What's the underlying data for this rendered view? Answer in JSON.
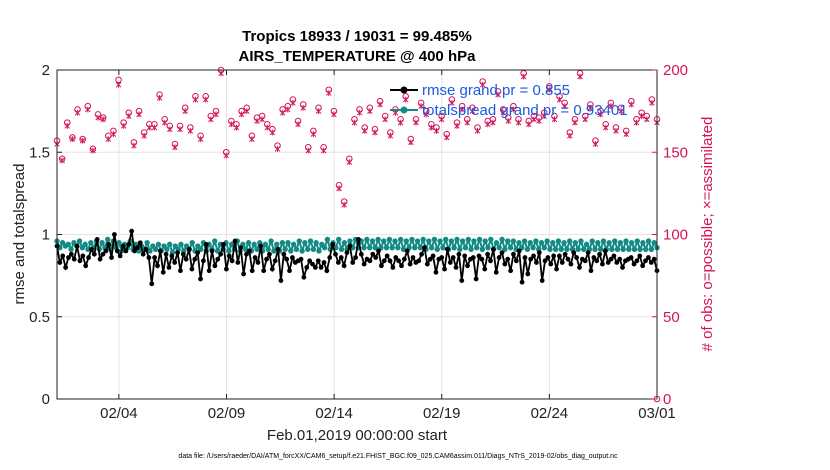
{
  "chart_data": {
    "type": "line",
    "title": "Tropics 18933 / 19031 = 99.485%",
    "subtitle": "AIRS_TEMPERATURE @ 400 hPa",
    "xlabel": "Feb.01,2019 00:00:00 start",
    "ylabel_left": "rmse and totalspread",
    "ylabel_right": "# of obs: o=possible; ×=assimilated",
    "footer": "data file: /Users/raeder/DAI/ATM_forcXX/CAM6_setup/f.e21.FHIST_BGC.f09_025.CAM6assim.011/Diags_NTrS_2019-02/obs_diag_output.nc",
    "x_ticks": [
      "02/04",
      "02/09",
      "02/14",
      "02/19",
      "02/24",
      "03/01"
    ],
    "x_tick_days": [
      4,
      9,
      14,
      19,
      24,
      29
    ],
    "xlim_days": [
      1.125,
      29.0
    ],
    "ylim_left": [
      0,
      2
    ],
    "y_ticks_left": [
      "0",
      "0.5",
      "1",
      "1.5",
      "2"
    ],
    "y_tick_values_left": [
      0,
      0.5,
      1,
      1.5,
      2
    ],
    "ylim_right": [
      0,
      200
    ],
    "y_ticks_right": [
      "0",
      "50",
      "100",
      "150",
      "200"
    ],
    "y_tick_values_right": [
      0,
      50,
      100,
      150,
      200
    ],
    "grid": true,
    "legend_position": "top-right",
    "colors": {
      "rmse": "#000000",
      "spread": "#138a84",
      "obs": "#d4145a",
      "legend_text": "#1a5adf"
    },
    "series": [
      {
        "name": "rmse grand pr = 0.855",
        "axis": "left",
        "marker": "star",
        "values": [
          0.93,
          0.83,
          0.87,
          0.8,
          0.86,
          0.88,
          0.85,
          0.93,
          0.84,
          0.87,
          0.81,
          0.86,
          0.91,
          0.88,
          0.97,
          0.85,
          0.88,
          0.9,
          0.94,
          0.86,
          1.0,
          0.9,
          0.87,
          0.93,
          0.9,
          0.94,
          1.02,
          0.9,
          0.92,
          0.95,
          0.88,
          0.91,
          0.86,
          0.7,
          0.86,
          0.81,
          0.9,
          0.77,
          0.88,
          0.8,
          0.87,
          0.83,
          0.89,
          0.78,
          0.88,
          0.85,
          0.91,
          0.79,
          0.85,
          0.89,
          0.73,
          0.84,
          0.94,
          0.78,
          0.9,
          0.81,
          0.85,
          0.88,
          0.94,
          0.79,
          0.87,
          0.84,
          0.96,
          0.83,
          0.92,
          0.76,
          0.88,
          0.9,
          0.78,
          0.86,
          0.83,
          0.93,
          0.78,
          0.85,
          0.88,
          0.79,
          0.84,
          0.91,
          0.72,
          0.88,
          0.85,
          0.78,
          0.86,
          0.83,
          0.84,
          0.85,
          0.74,
          0.8,
          0.84,
          0.82,
          0.8,
          0.84,
          0.8,
          0.83,
          0.78,
          0.86,
          0.94,
          0.88,
          0.83,
          0.86,
          0.81,
          0.89,
          0.93,
          0.83,
          0.86,
          0.97,
          0.88,
          0.82,
          0.85,
          0.84,
          0.88,
          0.86,
          0.9,
          0.81,
          0.84,
          0.87,
          0.84,
          0.8,
          0.86,
          0.84,
          0.81,
          0.85,
          0.9,
          0.82,
          0.86,
          0.83,
          0.84,
          0.88,
          0.92,
          0.82,
          0.85,
          0.87,
          0.77,
          0.85,
          0.86,
          0.79,
          0.91,
          0.83,
          0.86,
          0.8,
          0.88,
          0.72,
          0.87,
          0.81,
          0.85,
          0.86,
          0.73,
          0.87,
          0.85,
          0.79,
          0.88,
          0.84,
          0.91,
          0.77,
          0.86,
          0.89,
          0.82,
          0.85,
          0.78,
          0.88,
          0.84,
          0.9,
          0.71,
          0.86,
          0.76,
          0.85,
          0.87,
          0.83,
          0.89,
          0.72,
          0.84,
          0.86,
          0.82,
          0.87,
          0.79,
          0.87,
          0.83,
          0.88,
          0.85,
          0.82,
          0.89,
          0.86,
          0.8,
          0.85,
          0.84,
          0.89,
          0.78,
          0.86,
          0.84,
          0.88,
          0.82,
          0.9,
          0.83,
          0.85,
          0.87,
          0.83,
          0.85,
          0.8,
          0.84,
          0.85,
          0.86,
          0.82,
          0.84,
          0.87,
          0.81,
          0.84,
          0.86,
          0.83,
          0.85,
          0.78
        ]
      },
      {
        "name": "totalspread grand pr = 0.93401",
        "axis": "left",
        "marker": "circle",
        "values": [
          0.96,
          0.92,
          0.95,
          0.93,
          0.94,
          0.91,
          0.95,
          0.93,
          0.96,
          0.92,
          0.94,
          0.91,
          0.95,
          0.92,
          0.96,
          0.91,
          0.95,
          0.92,
          0.97,
          0.91,
          0.96,
          0.92,
          0.95,
          0.9,
          0.94,
          0.92,
          0.96,
          0.91,
          0.94,
          0.9,
          0.93,
          0.91,
          0.95,
          0.9,
          0.93,
          0.91,
          0.94,
          0.9,
          0.93,
          0.91,
          0.94,
          0.89,
          0.93,
          0.91,
          0.94,
          0.9,
          0.93,
          0.91,
          0.95,
          0.9,
          0.93,
          0.91,
          0.95,
          0.9,
          0.94,
          0.91,
          0.96,
          0.9,
          0.94,
          0.91,
          0.95,
          0.9,
          0.94,
          0.91,
          0.96,
          0.9,
          0.94,
          0.91,
          0.95,
          0.9,
          0.94,
          0.91,
          0.95,
          0.9,
          0.94,
          0.91,
          0.96,
          0.9,
          0.94,
          0.9,
          0.95,
          0.91,
          0.95,
          0.9,
          0.94,
          0.91,
          0.96,
          0.9,
          0.95,
          0.91,
          0.96,
          0.91,
          0.95,
          0.9,
          0.94,
          0.92,
          0.97,
          0.91,
          0.95,
          0.92,
          0.97,
          0.91,
          0.95,
          0.91,
          0.96,
          0.92,
          0.97,
          0.92,
          0.96,
          0.92,
          0.97,
          0.92,
          0.96,
          0.92,
          0.97,
          0.92,
          0.96,
          0.92,
          0.97,
          0.92,
          0.96,
          0.92,
          0.97,
          0.91,
          0.96,
          0.92,
          0.97,
          0.92,
          0.96,
          0.92,
          0.97,
          0.91,
          0.96,
          0.92,
          0.97,
          0.91,
          0.96,
          0.92,
          0.97,
          0.91,
          0.96,
          0.92,
          0.97,
          0.91,
          0.96,
          0.92,
          0.97,
          0.91,
          0.96,
          0.92,
          0.97,
          0.91,
          0.96,
          0.92,
          0.97,
          0.91,
          0.95,
          0.92,
          0.97,
          0.91,
          0.96,
          0.92,
          0.96,
          0.91,
          0.95,
          0.92,
          0.96,
          0.91,
          0.95,
          0.92,
          0.96,
          0.91,
          0.95,
          0.92,
          0.96,
          0.91,
          0.95,
          0.91,
          0.96,
          0.91,
          0.95,
          0.91,
          0.96,
          0.91,
          0.95,
          0.91,
          0.96,
          0.91,
          0.94,
          0.91,
          0.96,
          0.91,
          0.95,
          0.91,
          0.96,
          0.91,
          0.95,
          0.91,
          0.96,
          0.91,
          0.95,
          0.91,
          0.96,
          0.91,
          0.95,
          0.91,
          0.96,
          0.91,
          0.95,
          0.91,
          0.96,
          0.91,
          0.95,
          0.92
        ]
      },
      {
        "name": "# of obs possible",
        "axis": "right",
        "marker": "circle-open",
        "values": [
          157,
          146,
          168,
          159,
          176,
          158,
          178,
          152,
          173,
          171,
          160,
          163,
          194,
          168,
          174,
          156,
          175,
          162,
          167,
          167,
          185,
          170,
          166,
          155,
          166,
          177,
          165,
          184,
          160,
          184,
          172,
          175,
          200,
          150,
          169,
          167,
          175,
          177,
          160,
          171,
          172,
          167,
          164,
          154,
          176,
          178,
          182,
          169,
          179,
          153,
          163,
          177,
          153,
          188,
          175,
          130,
          120,
          146,
          170,
          176,
          165,
          177,
          164,
          181,
          172,
          162,
          176,
          170,
          184,
          158,
          170,
          180,
          175,
          167,
          165,
          172,
          161,
          182,
          168,
          178,
          170,
          177,
          165,
          193,
          169,
          170,
          187,
          176,
          171,
          178,
          170,
          198,
          169,
          172,
          171,
          174,
          190,
          172,
          184,
          180,
          162,
          170,
          198,
          172,
          179,
          157,
          175,
          167,
          180,
          165,
          177,
          163,
          181,
          170,
          174,
          172,
          182,
          170
        ]
      },
      {
        "name": "# of obs assimilated",
        "axis": "right",
        "marker": "x",
        "values": [
          155,
          145,
          166,
          158,
          174,
          157,
          176,
          151,
          171,
          170,
          158,
          161,
          191,
          166,
          172,
          154,
          173,
          160,
          165,
          165,
          183,
          168,
          164,
          153,
          164,
          175,
          163,
          182,
          158,
          182,
          170,
          173,
          198,
          148,
          167,
          165,
          173,
          175,
          158,
          169,
          170,
          165,
          162,
          152,
          174,
          176,
          180,
          167,
          177,
          151,
          161,
          175,
          151,
          186,
          173,
          128,
          118,
          144,
          168,
          174,
          163,
          175,
          162,
          179,
          170,
          160,
          174,
          168,
          182,
          156,
          168,
          178,
          173,
          165,
          163,
          170,
          159,
          180,
          166,
          176,
          168,
          175,
          163,
          191,
          167,
          168,
          185,
          174,
          169,
          176,
          168,
          196,
          167,
          170,
          169,
          172,
          188,
          170,
          182,
          178,
          160,
          168,
          196,
          170,
          177,
          155,
          173,
          165,
          178,
          163,
          175,
          161,
          179,
          168,
          172,
          170,
          180,
          168
        ]
      }
    ]
  }
}
